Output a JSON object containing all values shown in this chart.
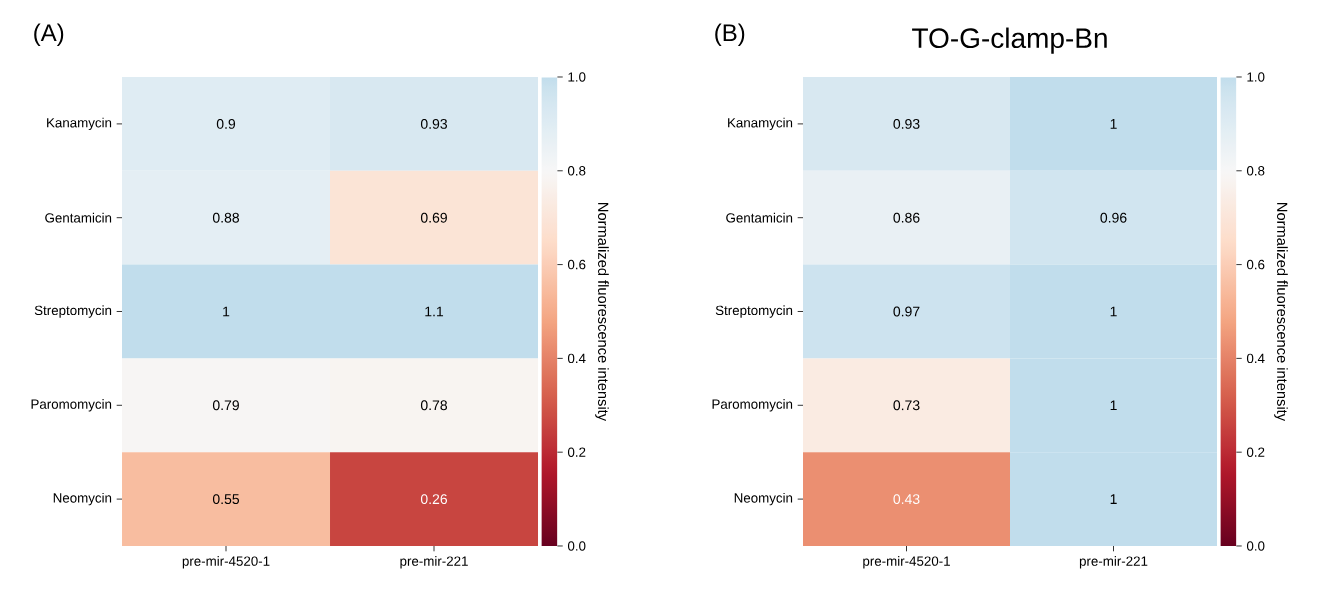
{
  "chart_data": [
    {
      "type": "heatmap",
      "annotations": [
        "(A)"
      ],
      "categories": [
        "pre-mir-4520-1",
        "pre-mir-221"
      ],
      "y_categories": [
        "Kanamycin",
        "Gentamicin",
        "Streptomycin",
        "Paromomycin",
        "Neomycin"
      ],
      "cells": [
        [
          0.9,
          0.93
        ],
        [
          0.88,
          0.69
        ],
        [
          1,
          1.1
        ],
        [
          0.79,
          0.78
        ],
        [
          0.55,
          0.26
        ]
      ],
      "data_labels": true,
      "clim": [
        0,
        1
      ],
      "cticks": [
        {
          "value": 0,
          "label": "0.0"
        },
        {
          "value": 0.2,
          "label": "0.2"
        },
        {
          "value": 0.4,
          "label": "0.4"
        },
        {
          "value": 0.6,
          "label": "0.6"
        },
        {
          "value": 0.8,
          "label": "0.8"
        },
        {
          "value": 1,
          "label": "1.0"
        }
      ],
      "clabel": "Normalized fluorescence intensity"
    },
    {
      "type": "heatmap",
      "title": "TO-G-clamp-Bn",
      "annotations": [
        "(B)"
      ],
      "categories": [
        "pre-mir-4520-1",
        "pre-mir-221"
      ],
      "y_categories": [
        "Kanamycin",
        "Gentamicin",
        "Streptomycin",
        "Paromomycin",
        "Neomycin"
      ],
      "cells": [
        [
          0.93,
          1
        ],
        [
          0.86,
          0.96
        ],
        [
          0.97,
          1
        ],
        [
          0.73,
          1
        ],
        [
          0.43,
          1
        ]
      ],
      "data_labels": true,
      "clim": [
        0,
        1
      ],
      "cticks": [
        {
          "value": 0,
          "label": "0.0"
        },
        {
          "value": 0.2,
          "label": "0.2"
        },
        {
          "value": 0.4,
          "label": "0.4"
        },
        {
          "value": 0.6,
          "label": "0.6"
        },
        {
          "value": 0.8,
          "label": "0.8"
        },
        {
          "value": 1,
          "label": "1.0"
        }
      ],
      "clabel": "Normalized fluorescence intensity"
    }
  ]
}
